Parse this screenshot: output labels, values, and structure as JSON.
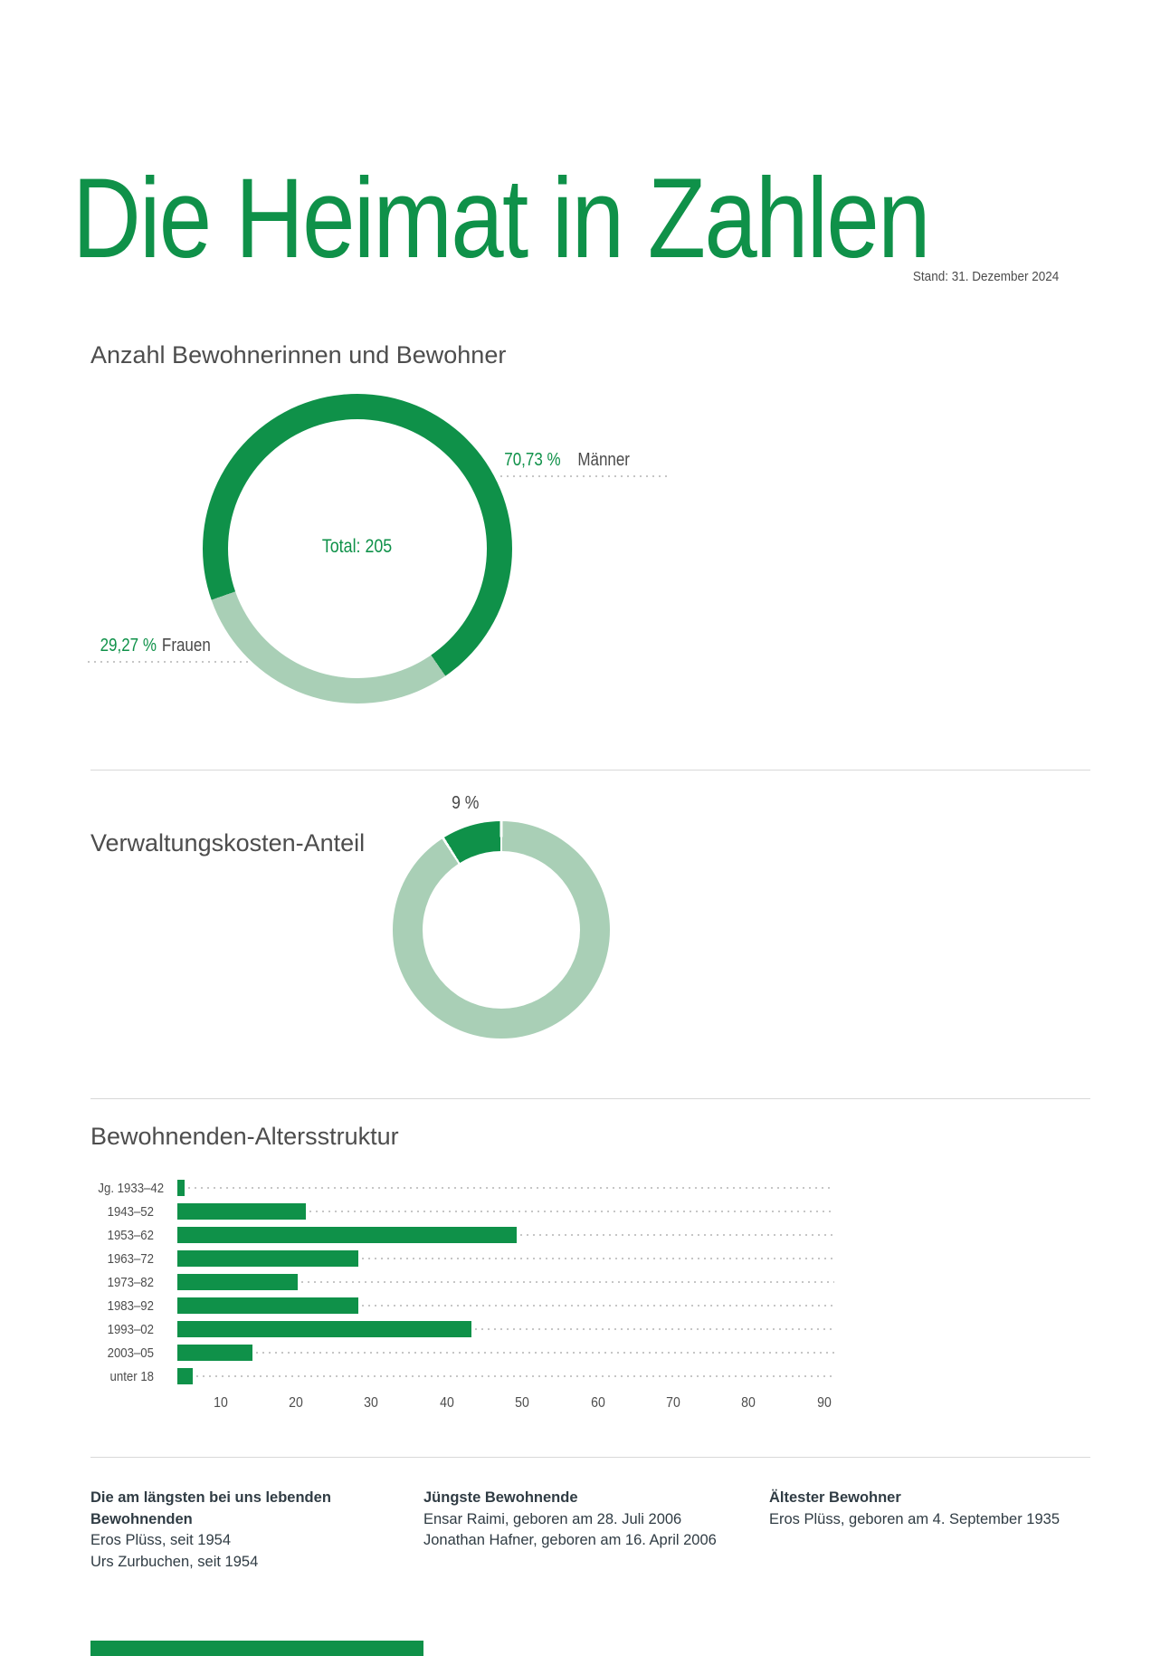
{
  "page": {
    "title": "Die Heimat in Zahlen",
    "date_label": "Stand: 31. Dezember 2024"
  },
  "colors": {
    "green": "#0f9149",
    "light_green": "#a9cfb6"
  },
  "chart_data": [
    {
      "type": "donut",
      "title": "Anzahl Bewohnerinnen und Bewohner",
      "center_label": "Total: 205",
      "total": 205,
      "segments": [
        {
          "label": "Männer",
          "pct": 70.73,
          "value_label": "70,73 %",
          "color": "#0f9149"
        },
        {
          "label": "Frauen",
          "pct": 29.27,
          "value_label": "29,27 %",
          "color": "#a9cfb6"
        }
      ]
    },
    {
      "type": "donut",
      "title": "Verwaltungskosten-Anteil",
      "segments": [
        {
          "label": "9 %",
          "pct": 9,
          "color": "#0f9149"
        },
        {
          "label": "",
          "pct": 91,
          "color": "#a9cfb6"
        }
      ]
    },
    {
      "type": "bar",
      "title": "Bewohnenden-Altersstruktur",
      "categories": [
        "Jg. 1933–42",
        "1943–52",
        "1953–62",
        "1963–72",
        "1973–82",
        "1983–92",
        "1993–02",
        "2003–05",
        "unter 18"
      ],
      "values": [
        4,
        20,
        48,
        27,
        19,
        27,
        42,
        13,
        5
      ],
      "x_ticks": [
        10,
        20,
        30,
        40,
        50,
        60,
        70,
        80,
        90
      ],
      "xlim": [
        0,
        90
      ],
      "bar_color": "#0f9149",
      "grid": "dotted-horizontal"
    }
  ],
  "footer": {
    "columns": [
      {
        "heading": "Die am längsten bei uns lebenden Bewohnenden",
        "lines": [
          "Eros Plüss, seit 1954",
          "Urs Zurbuchen, seit 1954"
        ]
      },
      {
        "heading": "Jüngste Bewohnende",
        "lines": [
          "Ensar Raimi, geboren am 28. Juli 2006",
          "Jonathan Hafner, geboren am 16. April 2006"
        ]
      },
      {
        "heading": "Ältester Bewohner",
        "lines": [
          "Eros Plüss, geboren am 4. September 1935"
        ]
      }
    ]
  }
}
